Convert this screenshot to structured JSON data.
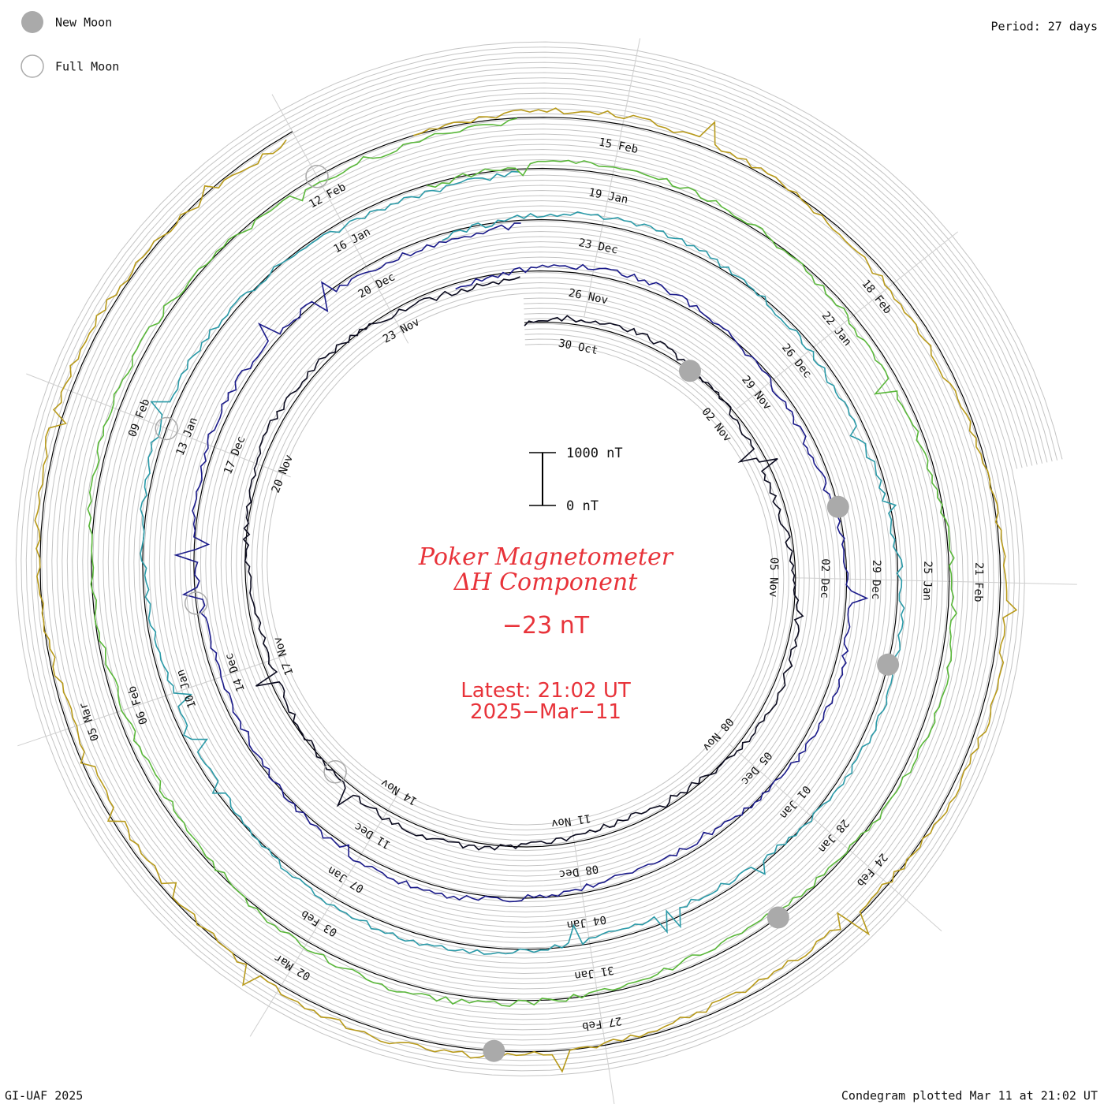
{
  "legend": {
    "new_moon_label": "New Moon",
    "full_moon_label": "Full Moon",
    "new_moon_color": "#aaaaaa",
    "full_moon_color": "#aaaaaa"
  },
  "header": {
    "period_label": "Period: 27 days"
  },
  "footer": {
    "credit": "GI-UAF 2025",
    "plotted": "Condegram plotted Mar 11 at 21:02 UT"
  },
  "scale_bar": {
    "top_label": "1000 nT",
    "bottom_label": "0 nT"
  },
  "center": {
    "title_line1": "Poker Magnetometer",
    "title_line2": "ΔH Component",
    "current_value": "−23 nT",
    "latest_line1": "Latest: 21:02 UT",
    "latest_line2": "2025−Mar−11",
    "accent_color": "#e8333a"
  },
  "chart_data": {
    "type": "line",
    "plot_style": "condegram spiral",
    "period_days": 27,
    "series_colors": [
      "#0a0a1e",
      "#1a1a8a",
      "#2a9aa8",
      "#5ab83a",
      "#b89a1a",
      "#c0420a",
      "#b01010"
    ],
    "date_labels": [
      "30 Oct",
      "02 Nov",
      "05 Nov",
      "08 Nov",
      "11 Nov",
      "14 Nov",
      "17 Nov",
      "20 Nov",
      "23 Nov",
      "26 Nov",
      "29 Nov",
      "02 Dec",
      "05 Dec",
      "08 Dec",
      "11 Dec",
      "14 Dec",
      "17 Dec",
      "20 Dec",
      "23 Dec",
      "26 Dec",
      "29 Dec",
      "01 Jan",
      "04 Jan",
      "07 Jan",
      "10 Jan",
      "13 Jan",
      "16 Jan",
      "19 Jan",
      "22 Jan",
      "25 Jan",
      "28 Jan",
      "31 Jan",
      "03 Feb",
      "06 Feb",
      "09 Feb",
      "12 Feb",
      "15 Feb",
      "18 Feb",
      "21 Feb",
      "24 Feb",
      "27 Feb",
      "02 Mar",
      "05 Mar"
    ],
    "new_moon_dates": [
      "01 Nov",
      "01 Dec",
      "30 Dec",
      "29 Jan",
      "28 Feb"
    ],
    "full_moon_dates": [
      "15 Nov",
      "15 Dec",
      "13 Jan",
      "12 Feb"
    ]
  }
}
